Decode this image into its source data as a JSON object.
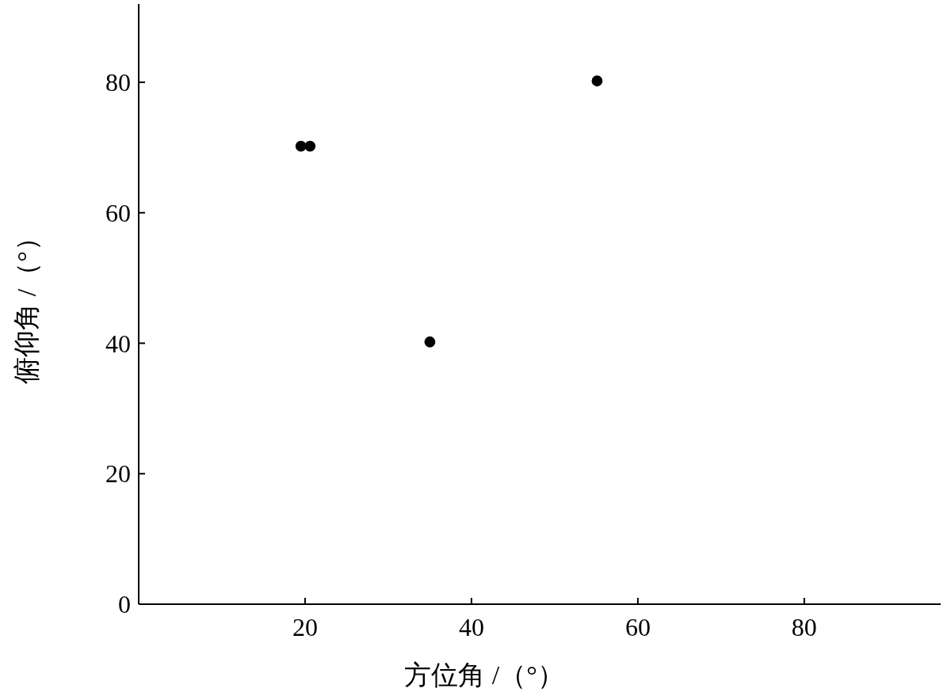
{
  "chart_data": {
    "type": "scatter",
    "xlabel": "方位角 /（°）",
    "ylabel": "俯仰角 /（°）",
    "x": [
      19.5,
      20.6,
      35,
      55.1
    ],
    "series": [
      {
        "color": "#000000",
        "values": [
          70.2,
          70.2,
          40.2,
          80.2
        ]
      }
    ],
    "xlim": [
      0,
      96.4
    ],
    "ylim": [
      0,
      92
    ],
    "xticks": [
      20,
      40,
      60,
      80
    ],
    "yticks": [
      0,
      20,
      40,
      60,
      80
    ],
    "marker": "circle",
    "grid": false
  }
}
